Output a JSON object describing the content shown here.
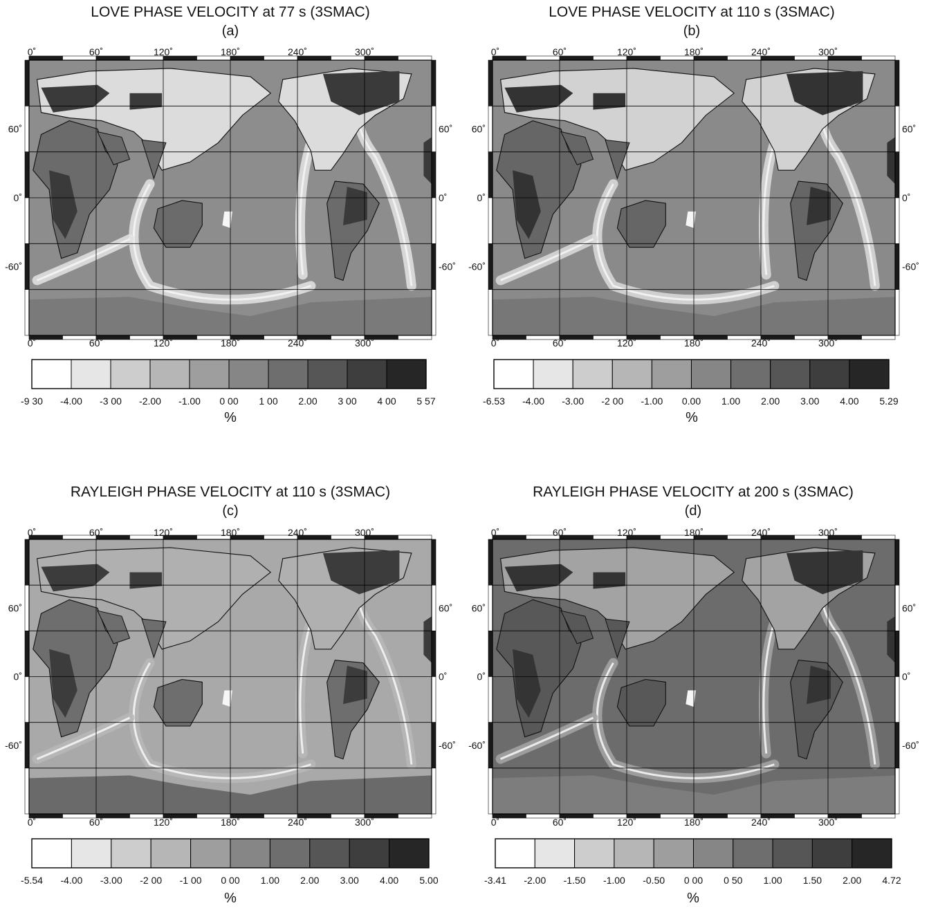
{
  "colors": {
    "frame_dark": "#1a1a1a",
    "grid_line": "#000000",
    "coastline": "#101010"
  },
  "lon_ticks": [
    "0˚",
    "60˚",
    "120˚",
    "180˚",
    "240˚",
    "300˚"
  ],
  "lat_ticks": [
    "60˚",
    "0˚",
    "-60˚"
  ],
  "unit_label": "%",
  "panels": [
    {
      "title": "LOVE PHASE VELOCITY at 77 s (3SMAC)",
      "subtitle": "(a)",
      "scale_labels": [
        "-9 30",
        "-4.00",
        "-3 00",
        "-2.00",
        "-1.00",
        "0 00",
        "1 00",
        "2.00",
        "3 00",
        "4 00",
        "5 57"
      ],
      "scale_colors": [
        "#ffffff",
        "#e6e6e6",
        "#cdcdcd",
        "#b6b6b6",
        "#9e9e9e",
        "#868686",
        "#6e6e6e",
        "#565656",
        "#3e3e3e",
        "#262626"
      ],
      "map_tones": {
        "ocean": "#8d8d8d",
        "ridge": "#e4e4e4",
        "craton": "#3a3a3a",
        "shield": "#6b6b6b",
        "tectonic": "#dcdcdc",
        "antarctica": "#7a7a7a"
      }
    },
    {
      "title": "LOVE PHASE VELOCITY at 110 s (3SMAC)",
      "subtitle": "(b)",
      "scale_labels": [
        "-6.53",
        "-4.00",
        "-3.00",
        "-2 00",
        "-1.00",
        "0.00",
        "1.00",
        "2.00",
        "3.00",
        "4.00",
        "5.29"
      ],
      "scale_colors": [
        "#ffffff",
        "#e6e6e6",
        "#cdcdcd",
        "#b6b6b6",
        "#9e9e9e",
        "#868686",
        "#6e6e6e",
        "#565656",
        "#3e3e3e",
        "#262626"
      ],
      "map_tones": {
        "ocean": "#8a8a8a",
        "ridge": "#dcdcdc",
        "craton": "#333333",
        "shield": "#666666",
        "tectonic": "#d2d2d2",
        "antarctica": "#777777"
      }
    },
    {
      "title": "RAYLEIGH PHASE VELOCITY at 110 s (3SMAC)",
      "subtitle": "(c)",
      "scale_labels": [
        "-5.54",
        "-4.00",
        "-3.00",
        "-2 00",
        "-1 00",
        "0 00",
        "1.00",
        "2.00",
        "3.00",
        "4.00",
        "5.00"
      ],
      "scale_colors": [
        "#ffffff",
        "#e6e6e6",
        "#cdcdcd",
        "#b6b6b6",
        "#9e9e9e",
        "#868686",
        "#6e6e6e",
        "#565656",
        "#3e3e3e",
        "#262626"
      ],
      "map_tones": {
        "ocean": "#a9a9a9",
        "ridge": "#b8b8b8",
        "craton": "#3c3c3c",
        "shield": "#6e6e6e",
        "tectonic": "#b0b0b0",
        "antarctica": "#6a6a6a"
      }
    },
    {
      "title": "RAYLEIGH PHASE VELOCITY at 200 s (3SMAC)",
      "subtitle": "(d)",
      "scale_labels": [
        "-3.41",
        "-2.00",
        "-1.50",
        "-1.00",
        "-0.50",
        "0 00",
        "0 50",
        "1.00",
        "1.50",
        "2.00",
        "4.72"
      ],
      "scale_colors": [
        "#ffffff",
        "#e6e6e6",
        "#cdcdcd",
        "#b6b6b6",
        "#9e9e9e",
        "#868686",
        "#6e6e6e",
        "#565656",
        "#3e3e3e",
        "#262626"
      ],
      "map_tones": {
        "ocean": "#6c6c6c",
        "ridge": "#a6a6a6",
        "craton": "#343434",
        "shield": "#585858",
        "tectonic": "#a3a3a3",
        "antarctica": "#7d7d7d"
      }
    }
  ]
}
